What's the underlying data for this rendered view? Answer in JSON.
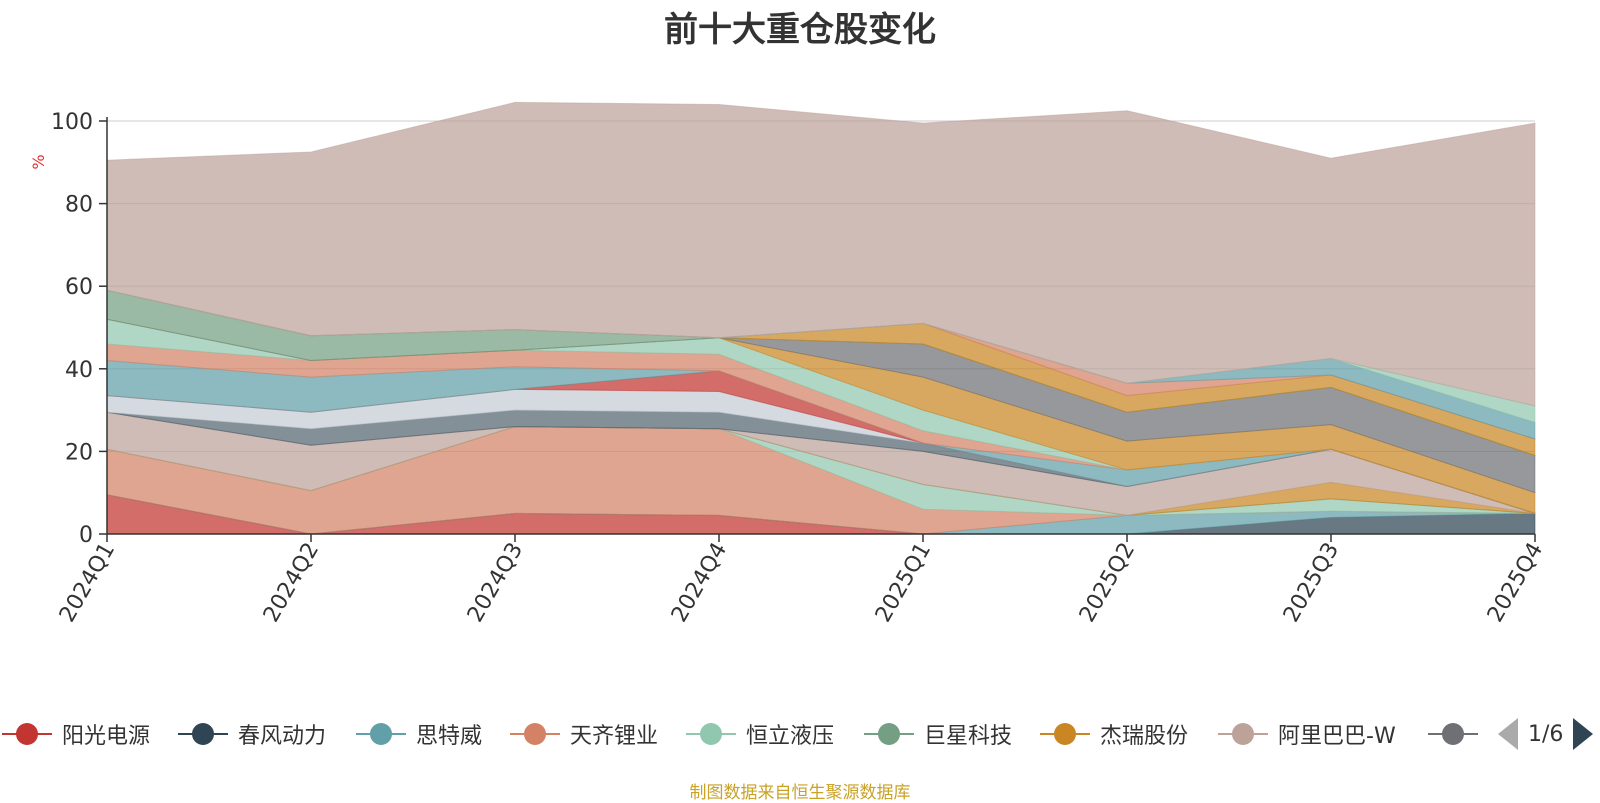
{
  "title": "前十大重仓股变化",
  "source_note": "制图数据来自恒生聚源数据库",
  "legend_page": "1/6",
  "chart_data": {
    "type": "area",
    "stacked": true,
    "title": "前十大重仓股变化",
    "ylabel": "%",
    "ylim": [
      0,
      100
    ],
    "yticks": [
      "0",
      "20",
      "40",
      "60",
      "80",
      "100"
    ],
    "categories": [
      "2024Q1",
      "2024Q2",
      "2024Q3",
      "2024Q4",
      "2025Q1",
      "2025Q2",
      "2025Q3",
      "2025Q4"
    ],
    "legend_position": "bottom",
    "series": [
      {
        "name": "阳光电源",
        "color": "#c23531",
        "values": [
          9.5,
          0,
          5,
          4.5,
          0,
          0,
          0,
          0
        ]
      },
      {
        "name": "春风动力",
        "color": "#2f4554",
        "values": [
          0,
          0,
          0,
          0,
          0,
          0,
          4,
          5
        ]
      },
      {
        "name": "思特威",
        "color": "#61a0a8",
        "values": [
          0,
          0,
          0,
          0,
          0,
          4.5,
          1.5,
          0
        ]
      },
      {
        "name": "天齐锂业",
        "color": "#d48265",
        "values": [
          11,
          10.5,
          21,
          21,
          6,
          0,
          0,
          0
        ]
      },
      {
        "name": "恒立液压",
        "color": "#91c7ae",
        "values": [
          0,
          0,
          0,
          0,
          6,
          0,
          3,
          0
        ]
      },
      {
        "name": "巨星科技",
        "color": "#749f83",
        "values": [
          0,
          0,
          0,
          0,
          0,
          0,
          0,
          0
        ]
      },
      {
        "name": "杰瑞股份",
        "color": "#ca8622",
        "values": [
          0,
          0,
          0,
          0,
          0,
          0,
          4,
          0
        ]
      },
      {
        "name": "阿里巴巴-W",
        "color": "#bda29a",
        "values": [
          9,
          11,
          0,
          0,
          8,
          7,
          8,
          0
        ]
      },
      {
        "name": "",
        "color": "#6e7074",
        "values": [
          0,
          0,
          0,
          0,
          0,
          0,
          0,
          0
        ]
      },
      {
        "name": "",
        "color": "#546570",
        "values": [
          0,
          4,
          4,
          4,
          2,
          0,
          0,
          0
        ]
      },
      {
        "name": "",
        "color": "#c4ccd3",
        "values": [
          4,
          4,
          5,
          5,
          0,
          0,
          0,
          0
        ]
      },
      {
        "name": "",
        "color": "#c23531",
        "values": [
          0,
          0,
          0,
          5,
          0,
          0,
          0,
          0
        ]
      },
      {
        "name": "",
        "color": "#61a0a8",
        "values": [
          8.5,
          8.5,
          5.5,
          0,
          0,
          4,
          0,
          0
        ]
      },
      {
        "name": "",
        "color": "#d48265",
        "values": [
          4,
          4,
          4,
          4,
          3,
          0,
          0,
          0
        ]
      },
      {
        "name": "",
        "color": "#91c7ae",
        "values": [
          6,
          0,
          0,
          4,
          5,
          0,
          0,
          0
        ]
      },
      {
        "name": "",
        "color": "#ca8622",
        "values": [
          0,
          0,
          0,
          0,
          8,
          7,
          6,
          5
        ]
      },
      {
        "name": "",
        "color": "#6e7074",
        "values": [
          0,
          0,
          0,
          0,
          8,
          7,
          9,
          9
        ]
      },
      {
        "name": "",
        "color": "#749f83",
        "values": [
          7,
          6,
          5,
          0,
          0,
          0,
          0,
          0
        ]
      },
      {
        "name": "",
        "color": "#ca8622",
        "values": [
          0,
          0,
          0,
          0,
          5,
          4,
          3,
          4
        ]
      },
      {
        "name": "",
        "color": "#d48265",
        "values": [
          0,
          0,
          0,
          0,
          0,
          3,
          0,
          0
        ]
      },
      {
        "name": "",
        "color": "#61a0a8",
        "values": [
          0,
          0,
          0,
          0,
          0,
          0,
          4,
          4
        ]
      },
      {
        "name": "",
        "color": "#91c7ae",
        "values": [
          0,
          0,
          0,
          0,
          0,
          0,
          0,
          4
        ]
      },
      {
        "name": "",
        "color": "#bda29a",
        "values": [
          31.5,
          44.5,
          55,
          56.5,
          48.5,
          66,
          48.5,
          68.5
        ]
      }
    ]
  }
}
